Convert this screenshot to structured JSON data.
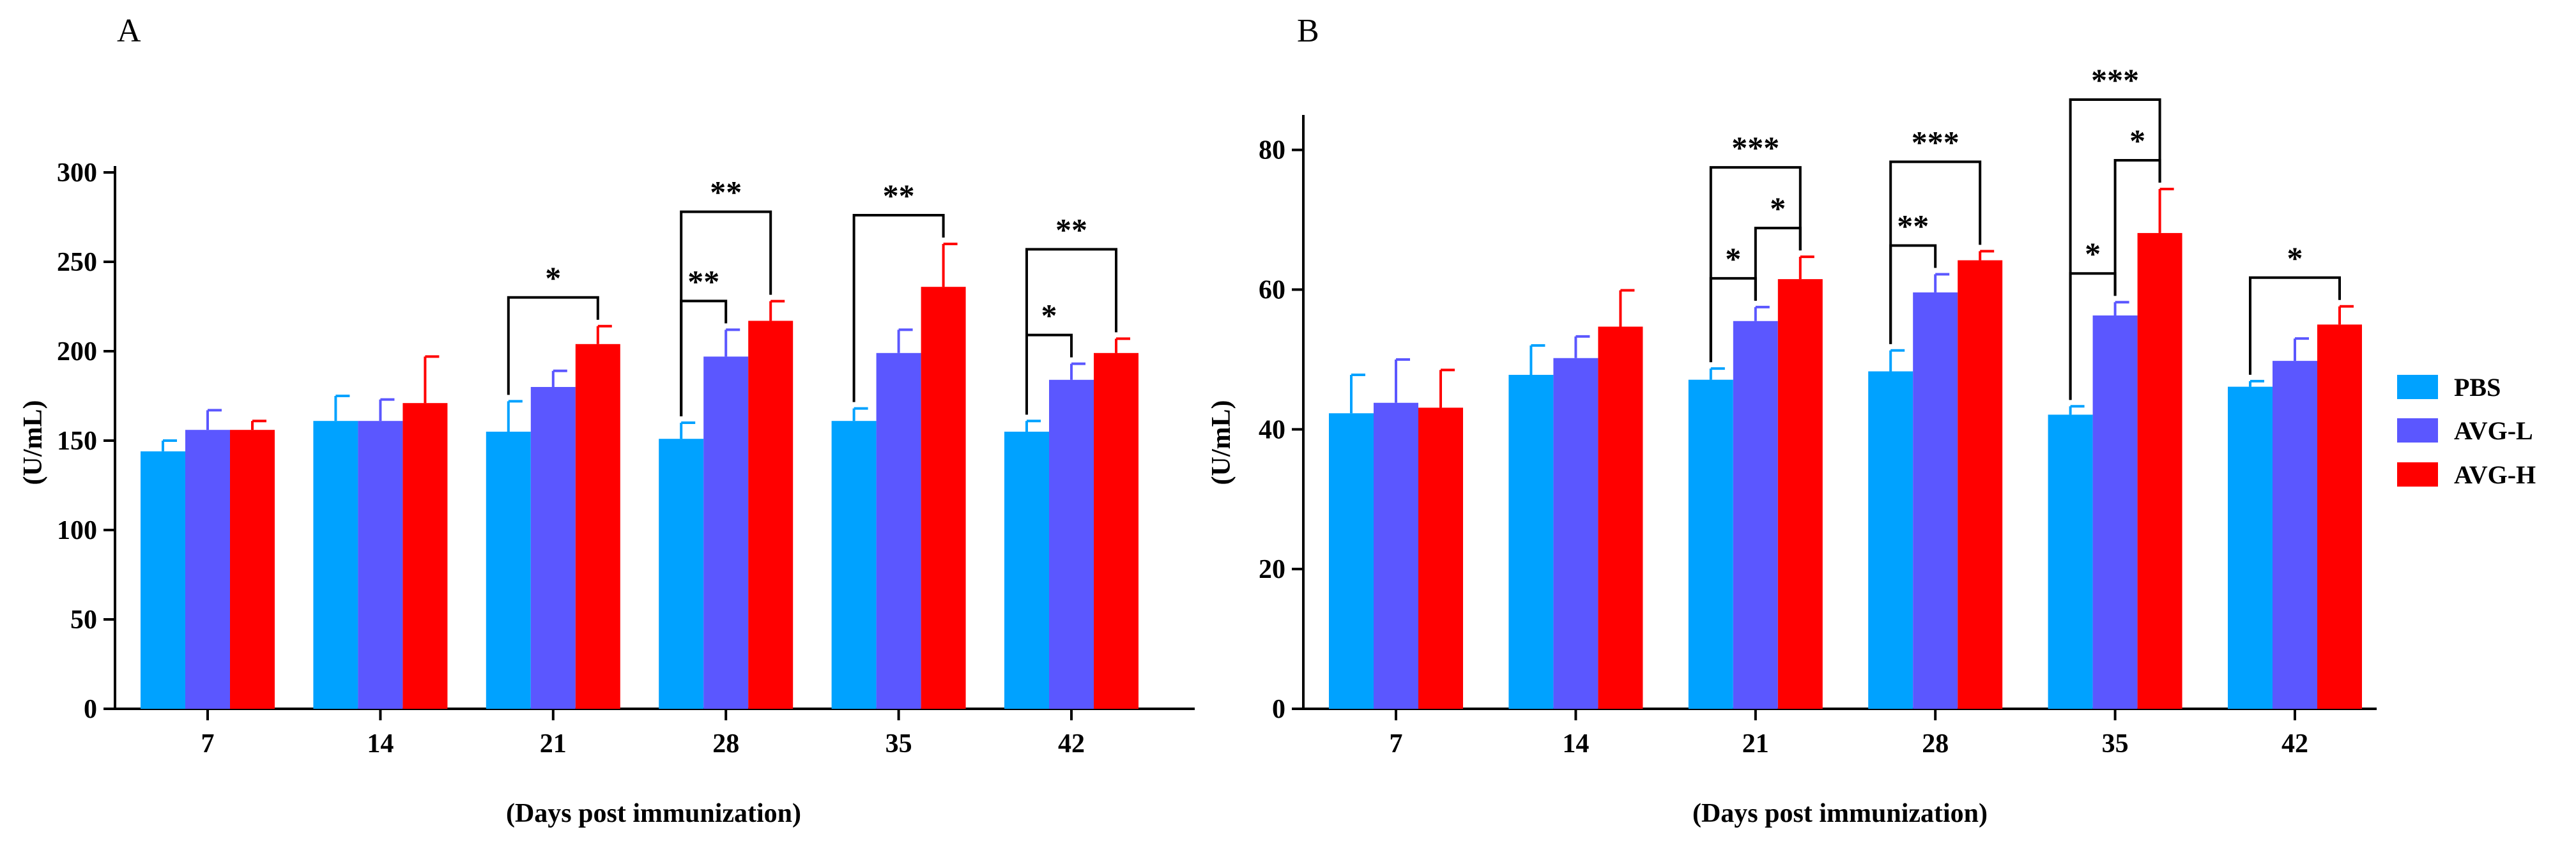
{
  "legend": [
    {
      "name": "PBS",
      "color": "#00A2FF"
    },
    {
      "name": "AVG-L",
      "color": "#5B57FF"
    },
    {
      "name": "AVG-H",
      "color": "#FF0000"
    }
  ],
  "chart_data": [
    {
      "panel": "A",
      "type": "bar",
      "categories": [
        "7",
        "14",
        "21",
        "28",
        "35",
        "42"
      ],
      "xlabel": "(Days post immunization)",
      "ylabel": "(U/mL)",
      "ylim": [
        0,
        300
      ],
      "yticks": [
        0,
        50,
        100,
        150,
        200,
        250,
        300
      ],
      "series": [
        {
          "name": "PBS",
          "color": "#00A2FF",
          "values": [
            144,
            161,
            155,
            151,
            161,
            155
          ],
          "errors": [
            6,
            14,
            17,
            9,
            7,
            6
          ]
        },
        {
          "name": "AVG-L",
          "color": "#5B57FF",
          "values": [
            156,
            161,
            180,
            197,
            199,
            184
          ],
          "errors": [
            11,
            12,
            9,
            15,
            13,
            9
          ]
        },
        {
          "name": "AVG-H",
          "color": "#FF0000",
          "values": [
            156,
            171,
            204,
            217,
            236,
            199
          ],
          "errors": [
            5,
            26,
            10,
            11,
            24,
            8
          ]
        }
      ],
      "significance": [
        {
          "category": 2,
          "from": 0,
          "to": 2,
          "label": "*",
          "level": 0
        },
        {
          "category": 3,
          "from": 0,
          "to": 1,
          "label": "**",
          "level": 0
        },
        {
          "category": 3,
          "from": 0,
          "to": 2,
          "label": "**",
          "level": 1
        },
        {
          "category": 4,
          "from": 0,
          "to": 2,
          "label": "**",
          "level": 0
        },
        {
          "category": 5,
          "from": 0,
          "to": 1,
          "label": "*",
          "level": 0
        },
        {
          "category": 5,
          "from": 0,
          "to": 2,
          "label": "**",
          "level": 1
        }
      ]
    },
    {
      "panel": "B",
      "type": "bar",
      "categories": [
        "7",
        "14",
        "21",
        "28",
        "35",
        "42"
      ],
      "xlabel": "(Days post immunization)",
      "ylabel": "(U/mL)",
      "ylim": [
        0,
        85
      ],
      "yticks": [
        0,
        20,
        40,
        60,
        80
      ],
      "series": [
        {
          "name": "PBS",
          "color": "#00A2FF",
          "values": [
            42.3,
            47.8,
            47.1,
            48.3,
            42.1,
            46.1
          ],
          "errors": [
            5.5,
            4.2,
            1.6,
            3.0,
            1.2,
            0.8
          ]
        },
        {
          "name": "AVG-L",
          "color": "#5B57FF",
          "values": [
            43.8,
            50.2,
            55.5,
            59.6,
            56.3,
            49.8
          ],
          "errors": [
            6.2,
            3.1,
            2.0,
            2.6,
            1.9,
            3.2
          ]
        },
        {
          "name": "AVG-H",
          "color": "#FF0000",
          "values": [
            43.1,
            54.7,
            61.5,
            64.2,
            68.1,
            55.0
          ],
          "errors": [
            5.4,
            5.2,
            3.2,
            1.3,
            6.3,
            2.6
          ]
        }
      ],
      "significance": [
        {
          "category": 2,
          "from": 0,
          "to": 1,
          "label": "*",
          "level": 0
        },
        {
          "category": 2,
          "from": 1,
          "to": 2,
          "label": "*",
          "level": 0
        },
        {
          "category": 2,
          "from": 0,
          "to": 2,
          "label": "***",
          "level": 1
        },
        {
          "category": 3,
          "from": 0,
          "to": 1,
          "label": "**",
          "level": 0
        },
        {
          "category": 3,
          "from": 0,
          "to": 2,
          "label": "***",
          "level": 1
        },
        {
          "category": 4,
          "from": 0,
          "to": 1,
          "label": "*",
          "level": 0
        },
        {
          "category": 4,
          "from": 1,
          "to": 2,
          "label": "*",
          "level": 0
        },
        {
          "category": 4,
          "from": 0,
          "to": 2,
          "label": "***",
          "level": 1
        },
        {
          "category": 5,
          "from": 0,
          "to": 2,
          "label": "*",
          "level": 0
        }
      ]
    }
  ]
}
